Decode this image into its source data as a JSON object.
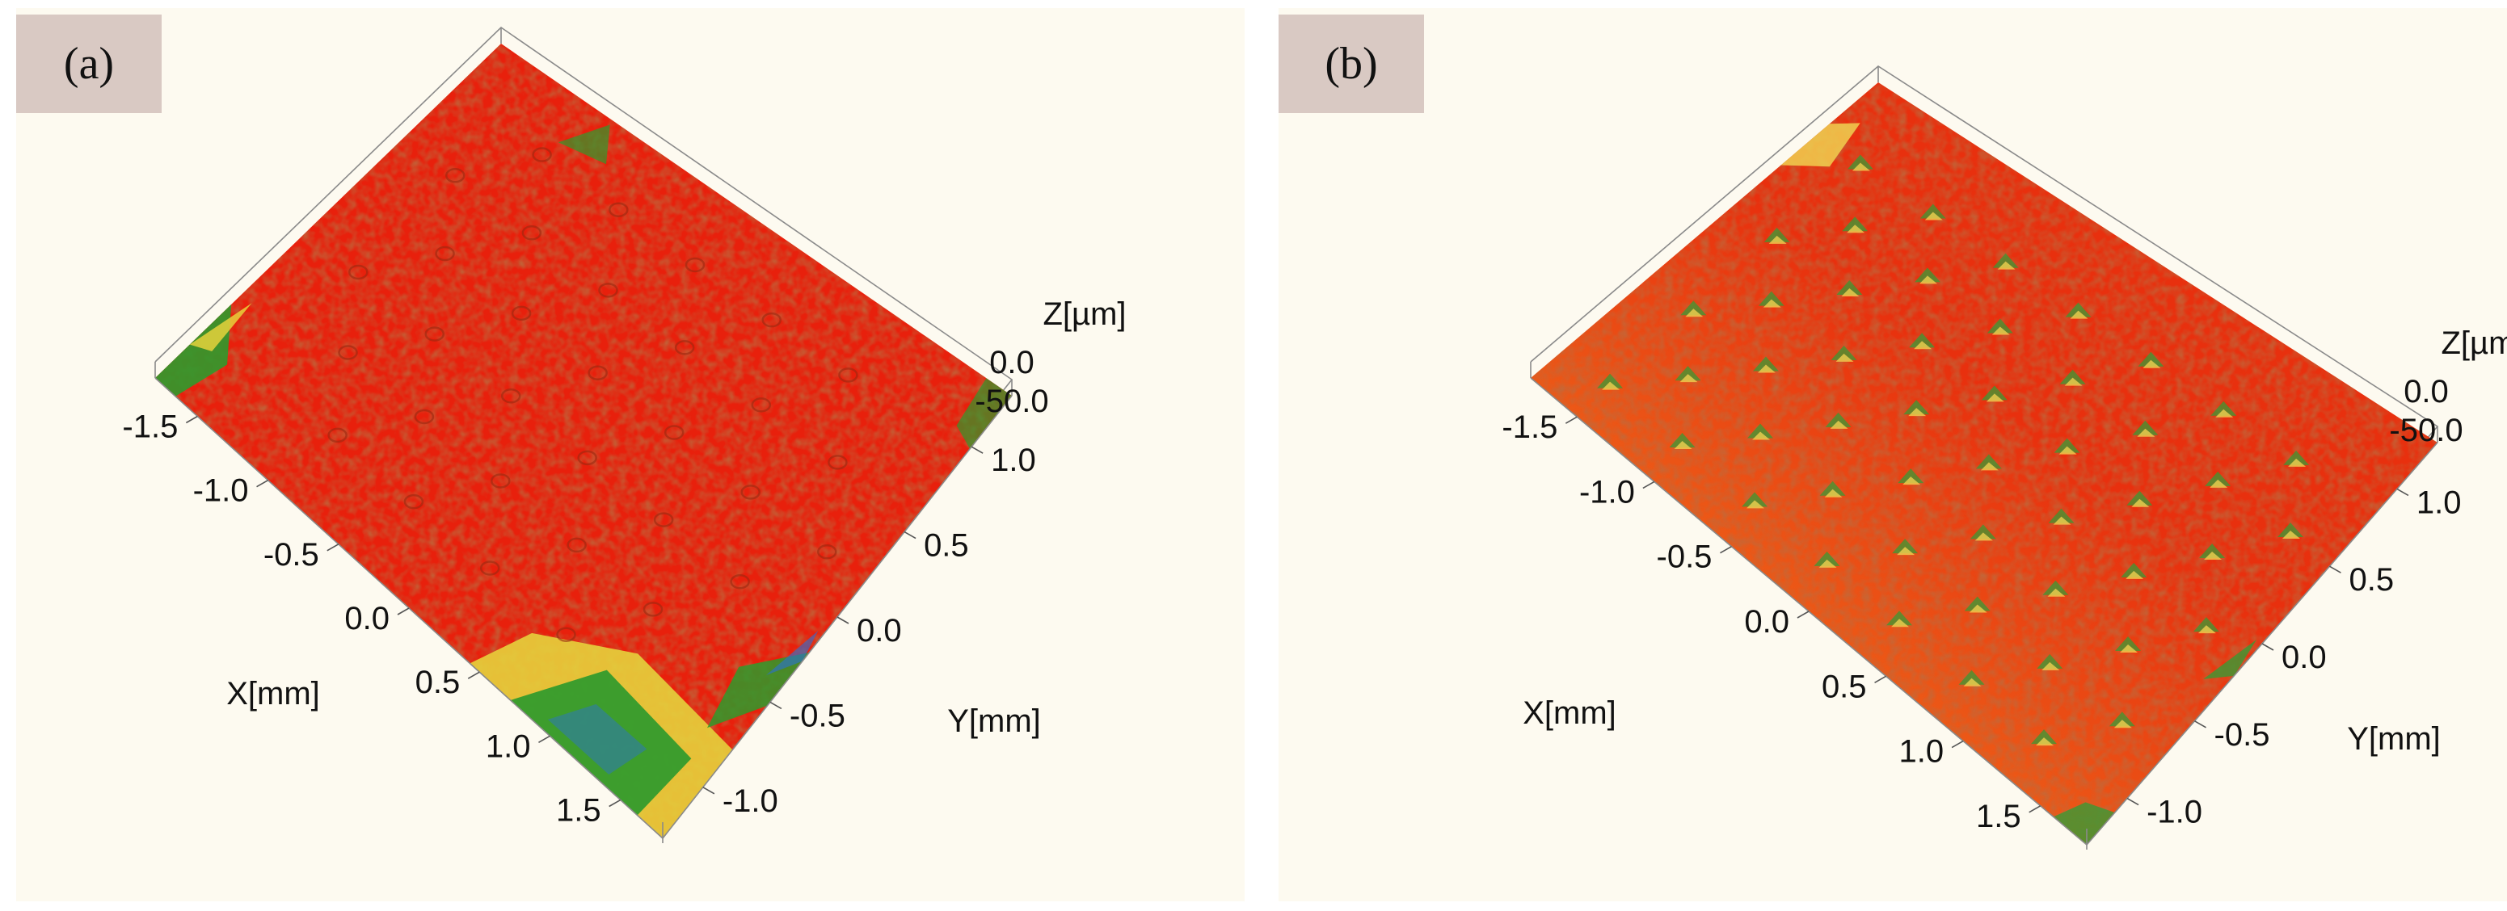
{
  "chart_data": [
    {
      "type": "surface",
      "panel_label": "(a)",
      "title": "",
      "xlabel": "X[mm]",
      "ylabel": "Y[mm]",
      "zlabel": "Z[µm]",
      "x_ticks": [
        "-1.5",
        "-1.0",
        "-0.5",
        "0.0",
        "0.5",
        "1.0",
        "1.5"
      ],
      "y_ticks": [
        "-1.0",
        "-0.5",
        "0.0",
        "0.5",
        "1.0"
      ],
      "z_ticks": [
        "0.0",
        "-50.0"
      ],
      "xlim": [
        -1.8,
        1.8
      ],
      "ylim": [
        -1.3,
        1.3
      ],
      "zlim": [
        -50.0,
        0.0
      ],
      "colors": {
        "high": "#e8200c",
        "mid": "#f07818",
        "low_yellow": "#e6d23c",
        "low_green": "#2f9a2c",
        "deep": "#2a6fd6"
      }
    },
    {
      "type": "surface",
      "panel_label": "(b)",
      "title": "",
      "xlabel": "X[mm]",
      "ylabel": "Y[mm]",
      "zlabel": "Z[µm]",
      "x_ticks": [
        "-1.5",
        "-1.0",
        "-0.5",
        "0.0",
        "0.5",
        "1.0",
        "1.5"
      ],
      "y_ticks": [
        "-1.0",
        "-0.5",
        "0.0",
        "0.5",
        "1.0"
      ],
      "z_ticks": [
        "0.0",
        "-50.0"
      ],
      "xlim": [
        -1.8,
        1.8
      ],
      "ylim": [
        -1.3,
        1.3
      ],
      "zlim": [
        -50.0,
        0.0
      ],
      "colors": {
        "high": "#e8300e",
        "mid": "#f08a22",
        "low_yellow": "#f0d050",
        "low_green": "#3a9a34",
        "deep": "#2a6fd6"
      }
    }
  ]
}
